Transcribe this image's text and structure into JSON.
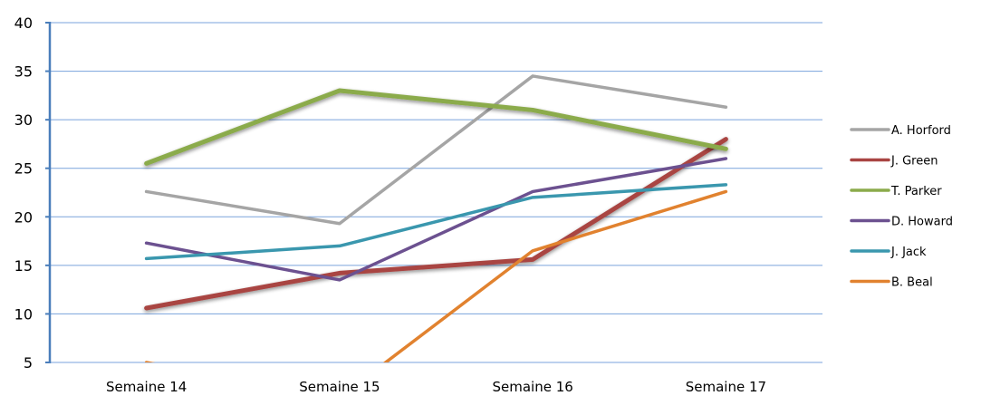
{
  "chart_data": {
    "type": "line",
    "categories": [
      "Semaine 14",
      "Semaine 15",
      "Semaine 16",
      "Semaine 17"
    ],
    "ylim": [
      5,
      40
    ],
    "yticks": [
      5,
      10,
      15,
      20,
      25,
      30,
      35,
      40
    ],
    "grid": true,
    "legend": "right",
    "series": [
      {
        "name": "A. Horford",
        "color": "#a5a5a5",
        "values": [
          22.6,
          19.3,
          34.5,
          31.3
        ]
      },
      {
        "name": "J. Green",
        "color": "#a94442",
        "values": [
          10.6,
          14.2,
          15.6,
          28.0
        ],
        "shadow": true
      },
      {
        "name": "T. Parker",
        "color": "#8bab4b",
        "values": [
          25.5,
          33.0,
          31.0,
          27.0
        ],
        "shadow": true
      },
      {
        "name": "D. Howard",
        "color": "#6c5190",
        "values": [
          17.3,
          13.5,
          22.6,
          26.0
        ]
      },
      {
        "name": "J. Jack",
        "color": "#3a97ae",
        "values": [
          15.7,
          17.0,
          22.0,
          23.3
        ]
      },
      {
        "name": "B. Beal",
        "color": "#e1822f",
        "values": [
          5.0,
          1.4,
          16.5,
          22.6
        ]
      }
    ]
  }
}
